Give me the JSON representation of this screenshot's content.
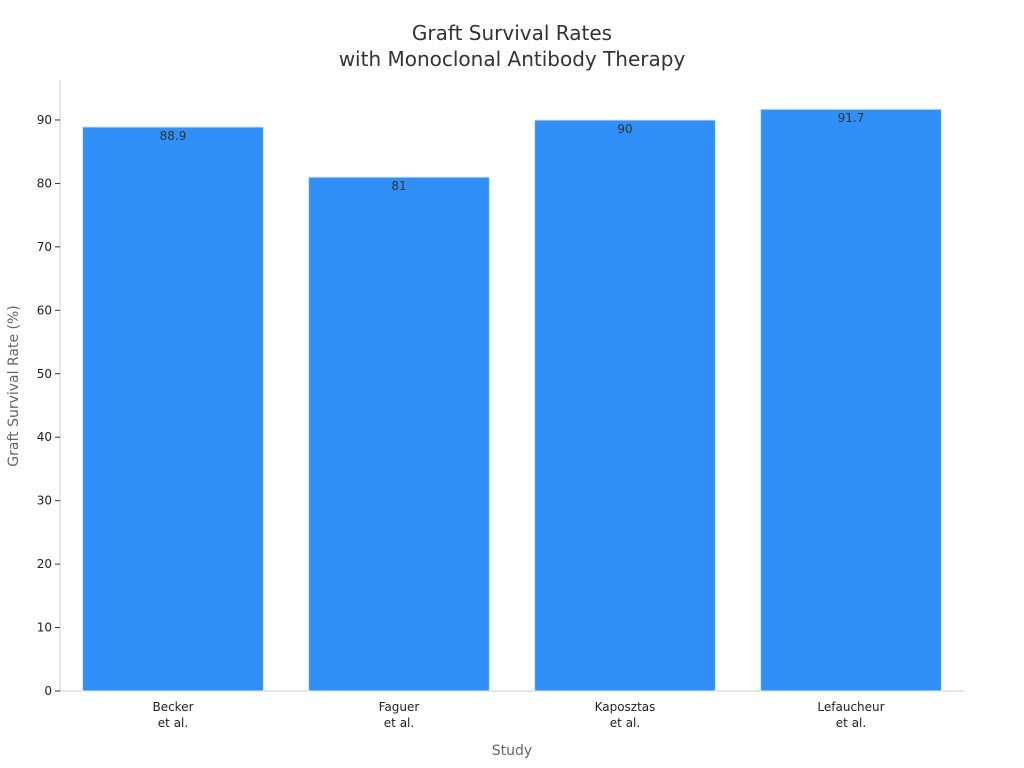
{
  "chart_data": {
    "type": "bar",
    "title": [
      "Graft Survival Rates",
      "with Monoclonal Antibody Therapy"
    ],
    "xlabel": "Study",
    "ylabel": "Graft Survival Rate (%)",
    "categories": [
      [
        "Becker",
        "et al."
      ],
      [
        "Faguer",
        "et al."
      ],
      [
        "Kaposztas",
        "et al."
      ],
      [
        "Lefaucheur",
        "et al."
      ]
    ],
    "values": [
      88.9,
      81,
      90,
      91.7
    ],
    "data_labels": [
      "88.9",
      "81",
      "90",
      "91.7"
    ],
    "ylim": [
      0,
      96.3
    ],
    "yticks": [
      0,
      10,
      20,
      30,
      40,
      50,
      60,
      70,
      80,
      90
    ],
    "grid": false,
    "legend": "none",
    "colors": {
      "bar": "#3090f8",
      "bar_edge": "#d6e8fb",
      "axis": "#cccccc",
      "tick": "#333333"
    }
  }
}
